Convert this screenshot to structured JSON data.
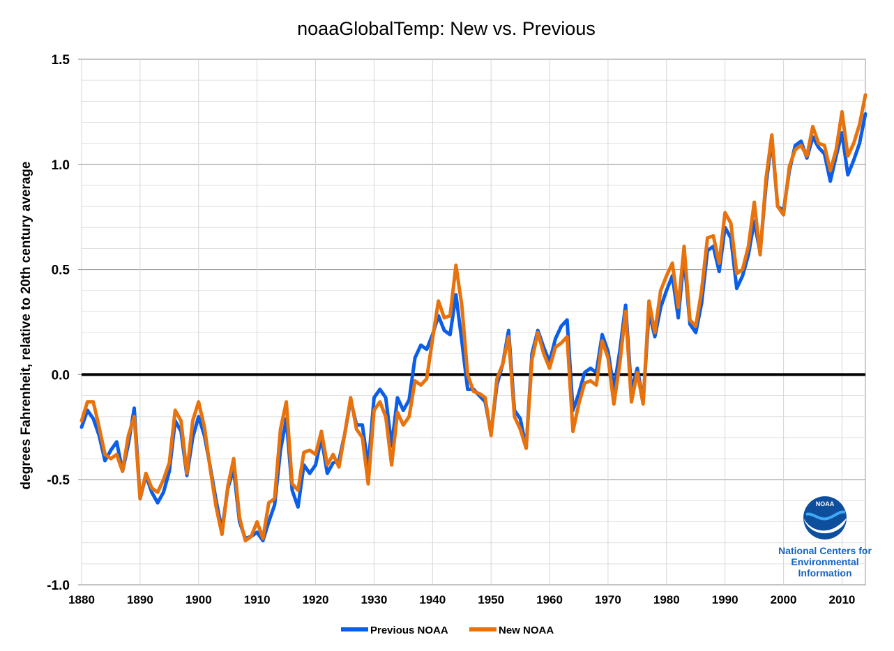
{
  "chart_data": {
    "type": "line",
    "title": "noaaGlobalTemp: New vs. Previous",
    "xlabel": "",
    "ylabel": "degrees  Fahrenheit,  relative  to  20th  century  average",
    "xlim": [
      1880,
      2014
    ],
    "ylim": [
      -1.0,
      1.5
    ],
    "x_ticks": [
      1880,
      1890,
      1900,
      1910,
      1920,
      1930,
      1940,
      1950,
      1960,
      1970,
      1980,
      1990,
      2000,
      2010
    ],
    "x_tick_labels": [
      "1880",
      "1890",
      "1900",
      "1910",
      "1920",
      "1930",
      "1940",
      "1950",
      "1960",
      "1970",
      "1980",
      "1990",
      "2000",
      "2010"
    ],
    "y_ticks": [
      -1.0,
      -0.5,
      0.0,
      0.5,
      1.0,
      1.5
    ],
    "y_tick_labels": [
      "-1.0",
      "-0.5",
      "0.0",
      "0.5",
      "1.0",
      "1.5"
    ],
    "grid": "horizontal major and minor, vertical at decades",
    "legend_position": "bottom-center",
    "x": [
      1880,
      1881,
      1882,
      1883,
      1884,
      1885,
      1886,
      1887,
      1888,
      1889,
      1890,
      1891,
      1892,
      1893,
      1894,
      1895,
      1896,
      1897,
      1898,
      1899,
      1900,
      1901,
      1902,
      1903,
      1904,
      1905,
      1906,
      1907,
      1908,
      1909,
      1910,
      1911,
      1912,
      1913,
      1914,
      1915,
      1916,
      1917,
      1918,
      1919,
      1920,
      1921,
      1922,
      1923,
      1924,
      1925,
      1926,
      1927,
      1928,
      1929,
      1930,
      1931,
      1932,
      1933,
      1934,
      1935,
      1936,
      1937,
      1938,
      1939,
      1940,
      1941,
      1942,
      1943,
      1944,
      1945,
      1946,
      1947,
      1948,
      1949,
      1950,
      1951,
      1952,
      1953,
      1954,
      1955,
      1956,
      1957,
      1958,
      1959,
      1960,
      1961,
      1962,
      1963,
      1964,
      1965,
      1966,
      1967,
      1968,
      1969,
      1970,
      1971,
      1972,
      1973,
      1974,
      1975,
      1976,
      1977,
      1978,
      1979,
      1980,
      1981,
      1982,
      1983,
      1984,
      1985,
      1986,
      1987,
      1988,
      1989,
      1990,
      1991,
      1992,
      1993,
      1994,
      1995,
      1996,
      1997,
      1998,
      1999,
      2000,
      2001,
      2002,
      2003,
      2004,
      2005,
      2006,
      2007,
      2008,
      2009,
      2010,
      2011,
      2012,
      2013,
      2014
    ],
    "series": [
      {
        "name": "Previous NOAA",
        "color": "#0b5ee8",
        "values": [
          -0.25,
          -0.17,
          -0.21,
          -0.29,
          -0.41,
          -0.36,
          -0.32,
          -0.46,
          -0.33,
          -0.16,
          -0.59,
          -0.48,
          -0.56,
          -0.61,
          -0.56,
          -0.46,
          -0.22,
          -0.27,
          -0.48,
          -0.3,
          -0.2,
          -0.29,
          -0.44,
          -0.6,
          -0.74,
          -0.54,
          -0.45,
          -0.7,
          -0.78,
          -0.77,
          -0.75,
          -0.79,
          -0.7,
          -0.62,
          -0.36,
          -0.21,
          -0.55,
          -0.63,
          -0.43,
          -0.47,
          -0.43,
          -0.3,
          -0.47,
          -0.42,
          -0.41,
          -0.28,
          -0.12,
          -0.24,
          -0.24,
          -0.44,
          -0.11,
          -0.07,
          -0.11,
          -0.34,
          -0.11,
          -0.17,
          -0.12,
          0.08,
          0.14,
          0.12,
          0.19,
          0.28,
          0.21,
          0.19,
          0.38,
          0.16,
          -0.07,
          -0.07,
          -0.1,
          -0.13,
          -0.28,
          -0.05,
          0.05,
          0.21,
          -0.17,
          -0.21,
          -0.35,
          0.1,
          0.21,
          0.13,
          0.06,
          0.17,
          0.23,
          0.26,
          -0.17,
          -0.09,
          0.01,
          0.03,
          0.01,
          0.19,
          0.11,
          -0.07,
          0.11,
          0.33,
          -0.08,
          0.03,
          -0.13,
          0.3,
          0.18,
          0.32,
          0.4,
          0.47,
          0.27,
          0.56,
          0.24,
          0.2,
          0.34,
          0.59,
          0.61,
          0.49,
          0.7,
          0.65,
          0.41,
          0.47,
          0.57,
          0.73,
          0.58,
          0.9,
          1.12,
          0.8,
          0.78,
          0.97,
          1.09,
          1.11,
          1.03,
          1.13,
          1.08,
          1.05,
          0.92,
          1.04,
          1.15,
          0.95,
          1.02,
          1.1,
          1.24
        ]
      },
      {
        "name": "New NOAA",
        "color": "#e8720c",
        "values": [
          -0.22,
          -0.13,
          -0.13,
          -0.25,
          -0.38,
          -0.4,
          -0.38,
          -0.46,
          -0.29,
          -0.2,
          -0.59,
          -0.47,
          -0.54,
          -0.56,
          -0.5,
          -0.42,
          -0.17,
          -0.22,
          -0.47,
          -0.22,
          -0.13,
          -0.25,
          -0.45,
          -0.63,
          -0.76,
          -0.53,
          -0.4,
          -0.68,
          -0.79,
          -0.77,
          -0.7,
          -0.78,
          -0.61,
          -0.59,
          -0.26,
          -0.13,
          -0.52,
          -0.55,
          -0.37,
          -0.36,
          -0.38,
          -0.27,
          -0.43,
          -0.38,
          -0.44,
          -0.28,
          -0.11,
          -0.26,
          -0.3,
          -0.52,
          -0.17,
          -0.13,
          -0.2,
          -0.43,
          -0.18,
          -0.24,
          -0.2,
          -0.03,
          -0.05,
          -0.02,
          0.17,
          0.35,
          0.27,
          0.28,
          0.52,
          0.33,
          0.0,
          -0.08,
          -0.09,
          -0.11,
          -0.29,
          -0.02,
          0.05,
          0.18,
          -0.2,
          -0.26,
          -0.35,
          0.07,
          0.2,
          0.1,
          0.03,
          0.13,
          0.15,
          0.18,
          -0.27,
          -0.14,
          -0.04,
          -0.03,
          -0.05,
          0.16,
          0.08,
          -0.14,
          0.05,
          0.3,
          -0.13,
          0.01,
          -0.14,
          0.35,
          0.2,
          0.4,
          0.47,
          0.53,
          0.32,
          0.61,
          0.26,
          0.23,
          0.4,
          0.65,
          0.66,
          0.53,
          0.77,
          0.72,
          0.48,
          0.5,
          0.61,
          0.82,
          0.57,
          0.93,
          1.14,
          0.8,
          0.76,
          0.99,
          1.07,
          1.09,
          1.04,
          1.18,
          1.1,
          1.09,
          0.97,
          1.07,
          1.25,
          1.04,
          1.1,
          1.19,
          1.33
        ]
      }
    ]
  },
  "logo": {
    "name": "NOAA",
    "text": "NOAA",
    "caption_lines": [
      "National Centers for",
      "Environmental",
      "Information"
    ]
  }
}
